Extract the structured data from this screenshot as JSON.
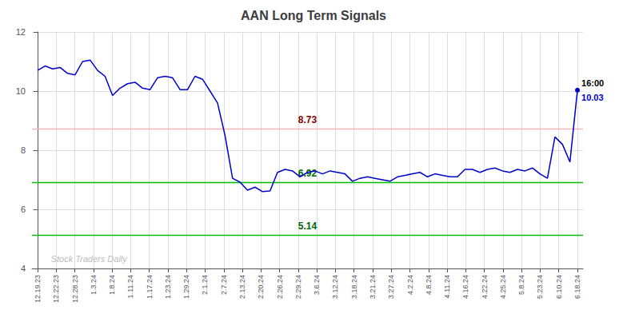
{
  "chart_data": {
    "type": "line",
    "title": "AAN Long Term Signals",
    "x": [
      0,
      0.402778,
      0.805556,
      1.208333,
      1.611111,
      2.013889,
      2.416667,
      2.819444,
      3.222222,
      3.625,
      4.027778,
      4.430556,
      4.833333,
      5.236111,
      5.638889,
      6.041667,
      6.444444,
      6.847222,
      7.25,
      7.652778,
      8.055556,
      8.458333,
      8.861111,
      9.263889,
      9.666667,
      10.069444,
      10.472222,
      10.875,
      11.277778,
      11.680556,
      12.083333,
      12.486111,
      12.888889,
      13.291667,
      13.694444,
      14.097222,
      14.5,
      14.902778,
      15.305556,
      15.708333,
      16.111111,
      16.513889,
      16.916667,
      17.319444,
      17.722222,
      18.125,
      18.527778,
      18.930556,
      19.333333,
      19.736111,
      20.138889,
      20.541667,
      20.944444,
      21.347222,
      21.75,
      22.152778,
      22.555556,
      22.958333,
      23.361111,
      23.763889,
      24.166667,
      24.569444,
      24.972222,
      25.375,
      25.777778,
      26.180556,
      26.583333,
      26.986111,
      27.388889,
      27.791667,
      28.194444,
      28.597222,
      29
    ],
    "values": [
      10.7,
      10.85,
      10.75,
      10.8,
      10.6,
      10.55,
      11.0,
      11.05,
      10.7,
      10.5,
      9.85,
      10.1,
      10.25,
      10.3,
      10.1,
      10.05,
      10.45,
      10.5,
      10.45,
      10.05,
      10.05,
      10.5,
      10.4,
      10.0,
      9.6,
      8.5,
      7.05,
      6.92,
      6.65,
      6.75,
      6.6,
      6.62,
      7.25,
      7.35,
      7.3,
      7.1,
      7.25,
      7.3,
      7.2,
      7.3,
      7.25,
      7.2,
      6.95,
      7.05,
      7.1,
      7.05,
      7.0,
      6.95,
      7.1,
      7.15,
      7.2,
      7.25,
      7.1,
      7.2,
      7.15,
      7.1,
      7.1,
      7.35,
      7.35,
      7.25,
      7.35,
      7.4,
      7.3,
      7.25,
      7.35,
      7.3,
      7.4,
      7.2,
      7.05,
      8.45,
      8.2,
      7.6,
      10.03
    ],
    "color": "#0000cc",
    "xlim": [
      -0.3,
      29.3
    ],
    "xticks": [
      {
        "value": 0,
        "label": "12.19.23"
      },
      {
        "value": 1,
        "label": "12.22.23"
      },
      {
        "value": 2,
        "label": "12.28.23"
      },
      {
        "value": 3,
        "label": "1.3.24"
      },
      {
        "value": 4,
        "label": "1.8.24"
      },
      {
        "value": 5,
        "label": "1.11.24"
      },
      {
        "value": 6,
        "label": "1.17.24"
      },
      {
        "value": 7,
        "label": "1.23.24"
      },
      {
        "value": 8,
        "label": "1.29.24"
      },
      {
        "value": 9,
        "label": "2.1.24"
      },
      {
        "value": 10,
        "label": "2.7.24"
      },
      {
        "value": 11,
        "label": "2.13.24"
      },
      {
        "value": 12,
        "label": "2.20.24"
      },
      {
        "value": 13,
        "label": "2.26.24"
      },
      {
        "value": 14,
        "label": "2.29.24"
      },
      {
        "value": 15,
        "label": "3.6.24"
      },
      {
        "value": 16,
        "label": "3.12.24"
      },
      {
        "value": 17,
        "label": "3.18.24"
      },
      {
        "value": 18,
        "label": "3.21.24"
      },
      {
        "value": 19,
        "label": "3.27.24"
      },
      {
        "value": 20,
        "label": "4.2.24"
      },
      {
        "value": 21,
        "label": "4.8.24"
      },
      {
        "value": 22,
        "label": "4.11.24"
      },
      {
        "value": 23,
        "label": "4.16.24"
      },
      {
        "value": 24,
        "label": "4.22.24"
      },
      {
        "value": 25,
        "label": "4.25.24"
      },
      {
        "value": 26,
        "label": "5.8.24"
      },
      {
        "value": 27,
        "label": "5.23.24"
      },
      {
        "value": 28,
        "label": "6.10.24"
      },
      {
        "value": 29,
        "label": "6.18.24"
      }
    ],
    "ylim": [
      4,
      12
    ],
    "yticks": [
      4,
      6,
      8,
      10,
      12
    ],
    "grid": true,
    "hlines": [
      {
        "y": 8.73,
        "label": "8.73",
        "color": "#ffb3b3",
        "label_color": "#8b0000"
      },
      {
        "y": 6.92,
        "label": "6.92",
        "color": "#00bb00",
        "label_color": "#006600"
      },
      {
        "y": 5.14,
        "label": "5.14",
        "color": "#00bb00",
        "label_color": "#006600"
      }
    ],
    "annotations": [
      {
        "x": 29,
        "y": 10.03,
        "text": "16:00",
        "color": "#000000",
        "side": "above"
      },
      {
        "x": 29,
        "y": 10.03,
        "text": "10.03",
        "color": "#0000cc",
        "side": "below"
      },
      {
        "x": 0.5,
        "y": 4.08,
        "text": "Stock Traders Daily",
        "color": "#bbbbbb",
        "side": "above"
      }
    ]
  }
}
